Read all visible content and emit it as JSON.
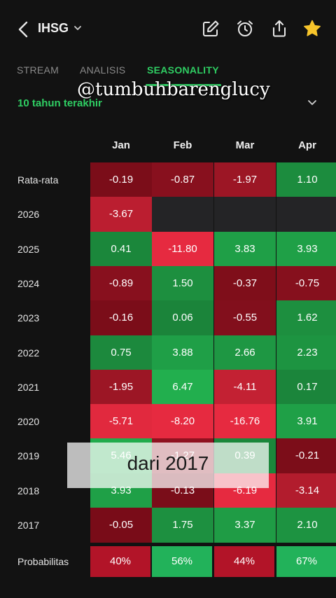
{
  "header": {
    "ticker": "IHSG",
    "icons": [
      "back-icon",
      "chevron-down-icon",
      "edit-icon",
      "alarm-icon",
      "share-icon",
      "star-icon"
    ],
    "star_color": "#f7c52b"
  },
  "tabs": [
    {
      "label": "STREAM",
      "active": false
    },
    {
      "label": "ANALISIS",
      "active": false
    },
    {
      "label": "SEASONALITY",
      "active": true
    }
  ],
  "watermark": "@tumbuhbarenglucy",
  "period": {
    "label": "10 tahun terakhir"
  },
  "table": {
    "months": [
      "Jan",
      "Feb",
      "Mar",
      "Apr"
    ],
    "rows": [
      {
        "label": "Rata-rata",
        "values": [
          "-0.19",
          "-0.87",
          "-1.97",
          "1.10"
        ]
      },
      {
        "label": "2026",
        "values": [
          "-3.67",
          "",
          "",
          ""
        ]
      },
      {
        "label": "2025",
        "values": [
          "0.41",
          "-11.80",
          "3.83",
          "3.93"
        ]
      },
      {
        "label": "2024",
        "values": [
          "-0.89",
          "1.50",
          "-0.37",
          "-0.75"
        ]
      },
      {
        "label": "2023",
        "values": [
          "-0.16",
          "0.06",
          "-0.55",
          "1.62"
        ]
      },
      {
        "label": "2022",
        "values": [
          "0.75",
          "3.88",
          "2.66",
          "2.23"
        ]
      },
      {
        "label": "2021",
        "values": [
          "-1.95",
          "6.47",
          "-4.11",
          "0.17"
        ]
      },
      {
        "label": "2020",
        "values": [
          "-5.71",
          "-8.20",
          "-16.76",
          "3.91"
        ]
      },
      {
        "label": "2019",
        "values": [
          "5.46",
          "-1.27",
          "0.39",
          "-0.21"
        ]
      },
      {
        "label": "2018",
        "values": [
          "3.93",
          "-0.13",
          "-6.19",
          "-3.14"
        ]
      },
      {
        "label": "2017",
        "values": [
          "-0.05",
          "1.75",
          "3.37",
          "2.10"
        ]
      }
    ],
    "probability": {
      "label": "Probabilitas",
      "values": [
        "40%",
        "56%",
        "44%",
        "67%"
      ]
    }
  },
  "overlay_caption": "dari 2017",
  "colors": {
    "accent": "#2fce63",
    "positive": "#1f9d4c",
    "negative": "#8c0f1c",
    "empty": "#242426",
    "background": "#121212"
  }
}
